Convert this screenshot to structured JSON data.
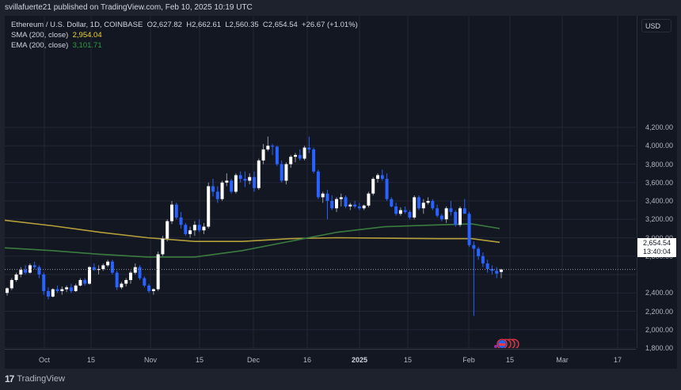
{
  "header": {
    "publish_line": "svillafuerte21 published on TradingView.com, Feb 10, 2025 10:19 UTC"
  },
  "legend": {
    "symbol_line": "Ethereum / U.S. Dollar, 1D, COINBASE",
    "open": "O2,627.82",
    "high": "H2,662.61",
    "low": "L2,560.35",
    "close": "C2,654.54",
    "change": "+26.67 (+1.01%)",
    "sma_label": "SMA (200, close)",
    "sma_value": "2,954.04",
    "ema_label": "EMA (200, close)",
    "ema_value": "3,101.71"
  },
  "y_axis": {
    "currency": "USD",
    "price_label": "2,654.54",
    "countdown": "13:40:04"
  },
  "footer": {
    "brand": "TradingView",
    "logo": "17"
  },
  "colors": {
    "background": "#131722",
    "up": "#ffffff",
    "down": "#2962ff",
    "sma": "#b5a03a",
    "ema": "#3a7d3f",
    "grid": "#232735"
  },
  "chart_data": {
    "type": "candlestick",
    "title": "Ethereum / U.S. Dollar, 1D, COINBASE",
    "ylabel": "USD",
    "ylim": [
      1780,
      4300
    ],
    "y_ticks": [
      "4,200.00",
      "4,000.00",
      "3,800.00",
      "3,600.00",
      "3,400.00",
      "3,200.00",
      "3,000.00",
      "2,800.00",
      "2,400.00",
      "2,200.00",
      "2,000.00",
      "1,800.00"
    ],
    "x_ticks": [
      "Oct",
      "15",
      "Nov",
      "15",
      "Dec",
      "16",
      "2025",
      "15",
      "Feb",
      "15",
      "Mar",
      "17"
    ],
    "grid": true,
    "last_price": 2654.54,
    "series": [
      {
        "name": "SMA (200, close)",
        "color": "#b5a03a",
        "x": [
          0,
          60,
          120,
          180,
          240,
          300,
          360,
          420,
          480,
          550,
          590,
          625
        ],
        "values": [
          3190,
          3130,
          3060,
          3000,
          2960,
          2960,
          2990,
          3000,
          2995,
          2990,
          2990,
          2950
        ]
      },
      {
        "name": "EMA (200, close)",
        "color": "#3a7d3f",
        "x": [
          0,
          60,
          120,
          180,
          240,
          300,
          360,
          420,
          480,
          550,
          590,
          625
        ],
        "values": [
          2890,
          2860,
          2820,
          2790,
          2790,
          2860,
          2960,
          3060,
          3120,
          3140,
          3150,
          3100
        ]
      },
      {
        "name": "ETHUSD",
        "ohlc": [
          [
            2400,
            2460,
            2370,
            2450
          ],
          [
            2450,
            2560,
            2430,
            2540
          ],
          [
            2540,
            2620,
            2520,
            2600
          ],
          [
            2600,
            2680,
            2570,
            2650
          ],
          [
            2650,
            2700,
            2600,
            2620
          ],
          [
            2620,
            2720,
            2610,
            2700
          ],
          [
            2700,
            2740,
            2660,
            2680
          ],
          [
            2680,
            2700,
            2560,
            2600
          ],
          [
            2600,
            2620,
            2380,
            2420
          ],
          [
            2420,
            2460,
            2330,
            2360
          ],
          [
            2360,
            2450,
            2350,
            2440
          ],
          [
            2440,
            2480,
            2400,
            2420
          ],
          [
            2420,
            2470,
            2380,
            2440
          ],
          [
            2440,
            2480,
            2410,
            2460
          ],
          [
            2460,
            2500,
            2400,
            2420
          ],
          [
            2420,
            2500,
            2410,
            2480
          ],
          [
            2480,
            2560,
            2470,
            2540
          ],
          [
            2540,
            2560,
            2480,
            2500
          ],
          [
            2500,
            2690,
            2490,
            2680
          ],
          [
            2680,
            2720,
            2640,
            2650
          ],
          [
            2650,
            2700,
            2600,
            2660
          ],
          [
            2660,
            2720,
            2640,
            2700
          ],
          [
            2700,
            2760,
            2680,
            2740
          ],
          [
            2740,
            2760,
            2600,
            2620
          ],
          [
            2620,
            2640,
            2430,
            2460
          ],
          [
            2460,
            2520,
            2440,
            2500
          ],
          [
            2500,
            2560,
            2470,
            2540
          ],
          [
            2540,
            2640,
            2500,
            2620
          ],
          [
            2620,
            2720,
            2600,
            2680
          ],
          [
            2680,
            2700,
            2540,
            2560
          ],
          [
            2560,
            2580,
            2460,
            2480
          ],
          [
            2480,
            2500,
            2400,
            2420
          ],
          [
            2420,
            2450,
            2380,
            2440
          ],
          [
            2440,
            2850,
            2420,
            2820
          ],
          [
            2820,
            3020,
            2800,
            2990
          ],
          [
            2990,
            3200,
            2960,
            3180
          ],
          [
            3180,
            3400,
            3150,
            3360
          ],
          [
            3360,
            3380,
            3200,
            3220
          ],
          [
            3220,
            3280,
            3100,
            3140
          ],
          [
            3140,
            3160,
            3020,
            3040
          ],
          [
            3040,
            3120,
            3000,
            3080
          ],
          [
            3080,
            3180,
            3020,
            3140
          ],
          [
            3140,
            3200,
            3060,
            3080
          ],
          [
            3080,
            3160,
            3040,
            3120
          ],
          [
            3120,
            3600,
            3100,
            3560
          ],
          [
            3560,
            3640,
            3450,
            3500
          ],
          [
            3500,
            3560,
            3380,
            3420
          ],
          [
            3420,
            3620,
            3400,
            3600
          ],
          [
            3600,
            3700,
            3560,
            3620
          ],
          [
            3620,
            3640,
            3480,
            3500
          ],
          [
            3500,
            3700,
            3480,
            3680
          ],
          [
            3680,
            3720,
            3600,
            3640
          ],
          [
            3640,
            3720,
            3550,
            3620
          ],
          [
            3620,
            3700,
            3580,
            3660
          ],
          [
            3660,
            3720,
            3500,
            3540
          ],
          [
            3540,
            3860,
            3520,
            3840
          ],
          [
            3840,
            4020,
            3800,
            3960
          ],
          [
            3960,
            4100,
            3940,
            4000
          ],
          [
            4000,
            4020,
            3900,
            3990
          ],
          [
            3990,
            4000,
            3780,
            3800
          ],
          [
            3800,
            3840,
            3600,
            3620
          ],
          [
            3620,
            3820,
            3580,
            3800
          ],
          [
            3800,
            3900,
            3760,
            3880
          ],
          [
            3880,
            3920,
            3820,
            3900
          ],
          [
            3900,
            3960,
            3840,
            3860
          ],
          [
            3860,
            4000,
            3840,
            3980
          ],
          [
            3980,
            4100,
            3920,
            3960
          ],
          [
            3960,
            3980,
            3700,
            3720
          ],
          [
            3720,
            3740,
            3420,
            3440
          ],
          [
            3440,
            3500,
            3380,
            3480
          ],
          [
            3480,
            3520,
            3200,
            3400
          ],
          [
            3400,
            3460,
            3300,
            3320
          ],
          [
            3320,
            3440,
            3280,
            3420
          ],
          [
            3420,
            3480,
            3340,
            3440
          ],
          [
            3440,
            3460,
            3320,
            3340
          ],
          [
            3340,
            3380,
            3300,
            3360
          ],
          [
            3360,
            3400,
            3320,
            3340
          ],
          [
            3340,
            3380,
            3300,
            3320
          ],
          [
            3320,
            3360,
            3300,
            3350
          ],
          [
            3350,
            3500,
            3330,
            3480
          ],
          [
            3480,
            3660,
            3460,
            3640
          ],
          [
            3640,
            3700,
            3600,
            3680
          ],
          [
            3680,
            3740,
            3620,
            3640
          ],
          [
            3640,
            3700,
            3400,
            3420
          ],
          [
            3420,
            3440,
            3330,
            3340
          ],
          [
            3340,
            3380,
            3240,
            3260
          ],
          [
            3260,
            3330,
            3240,
            3300
          ],
          [
            3300,
            3340,
            3260,
            3280
          ],
          [
            3280,
            3300,
            3200,
            3220
          ],
          [
            3220,
            3460,
            3200,
            3440
          ],
          [
            3440,
            3460,
            3300,
            3320
          ],
          [
            3320,
            3420,
            3260,
            3380
          ],
          [
            3380,
            3440,
            3360,
            3400
          ],
          [
            3400,
            3420,
            3300,
            3320
          ],
          [
            3320,
            3360,
            3220,
            3240
          ],
          [
            3240,
            3260,
            3180,
            3200
          ],
          [
            3200,
            3340,
            3160,
            3320
          ],
          [
            3320,
            3400,
            3240,
            3280
          ],
          [
            3280,
            3300,
            3120,
            3140
          ],
          [
            3140,
            3340,
            3120,
            3320
          ],
          [
            3320,
            3420,
            3280,
            3260
          ],
          [
            3260,
            3280,
            2900,
            2920
          ],
          [
            2920,
            2960,
            2150,
            2880
          ],
          [
            2880,
            2900,
            2760,
            2800
          ],
          [
            2800,
            2840,
            2680,
            2720
          ],
          [
            2720,
            2760,
            2620,
            2660
          ],
          [
            2660,
            2700,
            2600,
            2640
          ],
          [
            2640,
            2680,
            2560,
            2610
          ],
          [
            2627.82,
            2662.61,
            2560.35,
            2654.54
          ]
        ]
      }
    ]
  }
}
